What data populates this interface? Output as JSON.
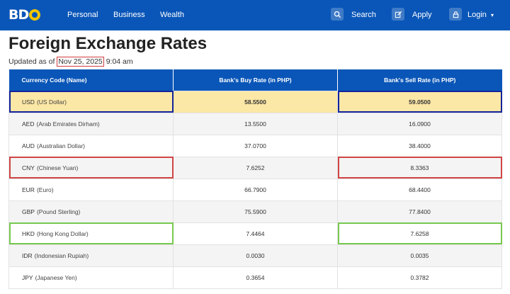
{
  "brand": {
    "logo_text": "BD",
    "logo_accent": "#f2c400"
  },
  "nav": {
    "links": [
      "Personal",
      "Business",
      "Wealth"
    ],
    "search_label": "Search",
    "apply_label": "Apply",
    "login_label": "Login",
    "bar_color": "#0a56b8"
  },
  "page": {
    "title": "Foreign Exchange Rates",
    "updated_prefix": "Updated as of",
    "updated_date": "Nov 25, 2025",
    "updated_time": "9:04 am"
  },
  "table": {
    "headers": [
      "Currency Code (Name)",
      "Bank's Buy Rate (in PHP)",
      "Bank's Sell Rate (in PHP)"
    ],
    "rows": [
      {
        "code": "USD",
        "name": "(US Dollar)",
        "buy": "58.5500",
        "sell": "59.0500"
      },
      {
        "code": "AED",
        "name": "(Arab Emirates Dirham)",
        "buy": "13.5500",
        "sell": "16.0900"
      },
      {
        "code": "AUD",
        "name": "(Australian Dollar)",
        "buy": "37.0700",
        "sell": "38.4000"
      },
      {
        "code": "CNY",
        "name": "(Chinese Yuan)",
        "buy": "7.6252",
        "sell": "8.3363"
      },
      {
        "code": "EUR",
        "name": "(Euro)",
        "buy": "66.7900",
        "sell": "68.4400"
      },
      {
        "code": "GBP",
        "name": "(Pound Sterling)",
        "buy": "75.5900",
        "sell": "77.8400"
      },
      {
        "code": "HKD",
        "name": "(Hong Kong Dollar)",
        "buy": "7.4464",
        "sell": "7.6258"
      },
      {
        "code": "IDR",
        "name": "(Indonesian Rupiah)",
        "buy": "0.0030",
        "sell": "0.0035"
      },
      {
        "code": "JPY",
        "name": "(Japanese Yen)",
        "buy": "0.3654",
        "sell": "0.3782"
      }
    ]
  },
  "colors": {
    "highlight_row": "#fbe7a6",
    "annotation_blue": "#12249c",
    "annotation_red": "#d04545",
    "annotation_green": "#78c94f"
  }
}
